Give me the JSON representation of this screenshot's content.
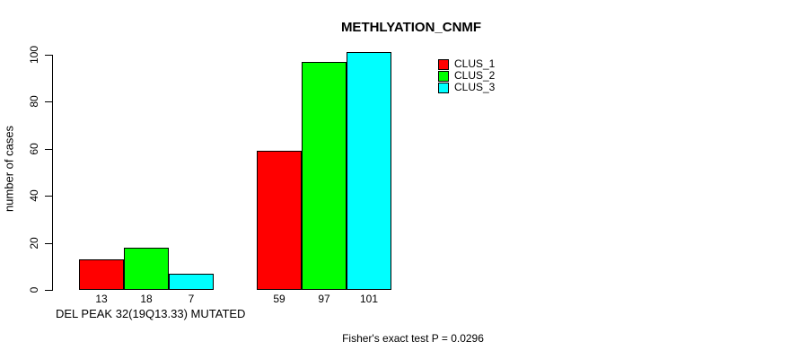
{
  "chart_data": {
    "type": "bar",
    "title": "METHLYATION_CNMF",
    "xlabel": "DEL PEAK 32(19Q13.33) MUTATED",
    "ylabel": "number of cases",
    "footnote": "Fisher's exact test P = 0.0296",
    "series": [
      {
        "name": "CLUS_1",
        "color": "#ff0000",
        "values": [
          13,
          59
        ]
      },
      {
        "name": "CLUS_2",
        "color": "#00ff00",
        "values": [
          18,
          97
        ]
      },
      {
        "name": "CLUS_3",
        "color": "#00ffff",
        "values": [
          7,
          101
        ]
      }
    ],
    "groups": 2,
    "bar_value_labels": [
      [
        13,
        18,
        7
      ],
      [
        59,
        97,
        101
      ]
    ],
    "y_ticks": [
      0,
      20,
      40,
      60,
      80,
      100
    ],
    "ylim": [
      0,
      100
    ],
    "grid": false,
    "legend_position": "top-right",
    "legend": [
      "CLUS_1",
      "CLUS_2",
      "CLUS_3"
    ],
    "axis_color": "#000000"
  }
}
